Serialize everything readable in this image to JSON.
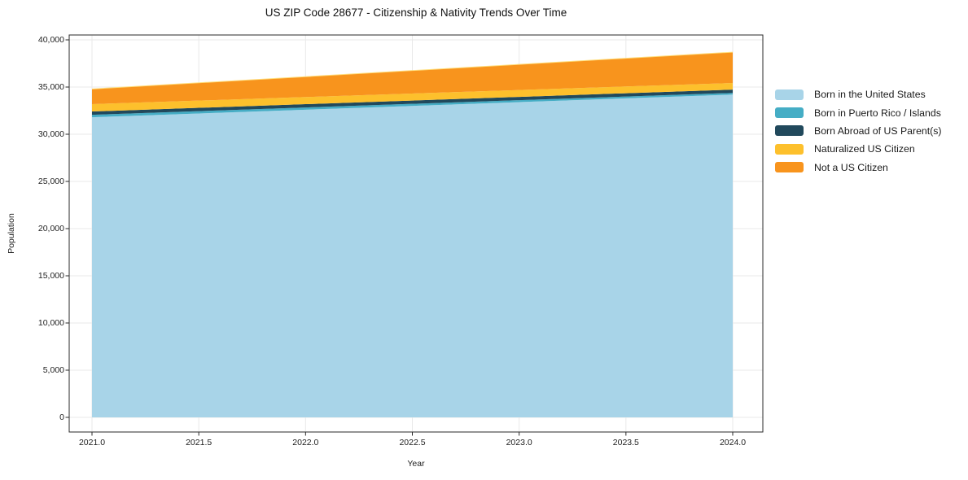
{
  "figure": {
    "title": "US ZIP Code 28677 - Citizenship & Nativity Trends Over Time",
    "xlabel": "Year",
    "ylabel": "Population"
  },
  "chart_data": {
    "type": "area",
    "stacked": true,
    "title": "US ZIP Code 28677 - Citizenship & Nativity Trends Over Time",
    "xlabel": "Year",
    "ylabel": "Population",
    "x": [
      2021,
      2022,
      2023,
      2024
    ],
    "series": [
      {
        "name": "Born in the United States",
        "color": "#a8d4e8",
        "values": [
          31800,
          32600,
          33400,
          34200
        ]
      },
      {
        "name": "Born in Puerto Rico / Islands",
        "color": "#45adc5",
        "values": [
          260,
          235,
          210,
          180
        ]
      },
      {
        "name": "Born Abroad of US Parent(s)",
        "color": "#21495c",
        "values": [
          350,
          350,
          350,
          350
        ]
      },
      {
        "name": "Naturalized US Citizen",
        "color": "#fdc02c",
        "values": [
          780,
          755,
          725,
          700
        ]
      },
      {
        "name": "Not a US Citizen",
        "color": "#f8941d",
        "values": [
          1610,
          2160,
          2720,
          3270
        ]
      }
    ],
    "totals": [
      34800,
      36100,
      37405,
      38700
    ],
    "xlim": [
      2020.85,
      2024.15
    ],
    "ylim": [
      0,
      40000
    ],
    "xticks": {
      "values": [
        2021.0,
        2021.5,
        2022.0,
        2022.5,
        2023.0,
        2023.5,
        2024.0
      ],
      "labels": [
        "2021.0",
        "2021.5",
        "2022.0",
        "2022.5",
        "2023.0",
        "2023.5",
        "2024.0"
      ]
    },
    "yticks": {
      "values": [
        0,
        5000,
        10000,
        15000,
        20000,
        25000,
        30000,
        35000,
        40000
      ],
      "labels": [
        "0",
        "5,000",
        "10,000",
        "15,000",
        "20,000",
        "25,000",
        "30,000",
        "35,000",
        "40,000"
      ]
    },
    "grid": true,
    "grid_color": "#e9e9e9",
    "frame_color": "#2a2a2a",
    "legend_position": "right"
  },
  "legend": {
    "items": [
      {
        "label": "Born in the United States",
        "color": "#a8d4e8"
      },
      {
        "label": "Born in Puerto Rico / Islands",
        "color": "#45adc5"
      },
      {
        "label": "Born Abroad of US Parent(s)",
        "color": "#21495c"
      },
      {
        "label": "Naturalized US Citizen",
        "color": "#fdc02c"
      },
      {
        "label": "Not a US Citizen",
        "color": "#f8941d"
      }
    ]
  }
}
